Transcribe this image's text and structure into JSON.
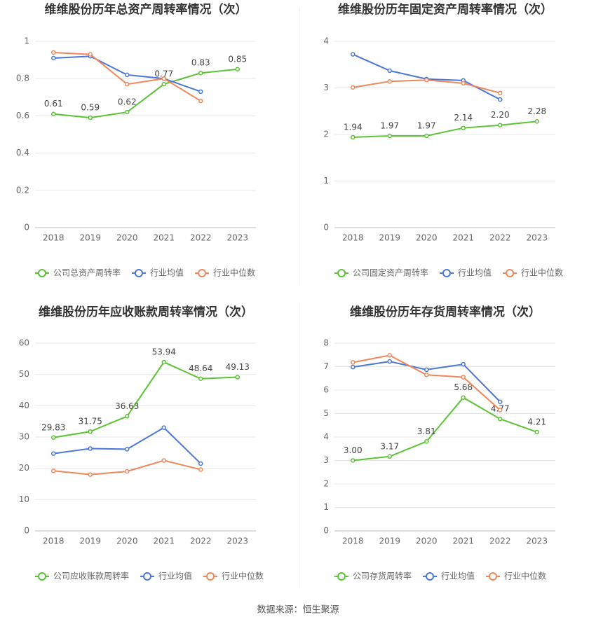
{
  "chart_data": [
    {
      "type": "line",
      "title": "维维股份历年总资产周转率情况（次）",
      "categories": [
        "2018",
        "2019",
        "2020",
        "2021",
        "2022",
        "2023"
      ],
      "ylim": [
        0,
        1
      ],
      "yticks": [
        0,
        0.2,
        0.4,
        0.6,
        0.8,
        1
      ],
      "grid": true,
      "series": [
        {
          "name": "公司总资产周转率",
          "color": "#5cc236",
          "values": [
            0.61,
            0.59,
            0.62,
            0.77,
            0.83,
            0.85
          ]
        },
        {
          "name": "行业均值",
          "color": "#4a77d9",
          "values": [
            0.91,
            0.92,
            0.82,
            0.8,
            0.73,
            null
          ]
        },
        {
          "name": "行业中位数",
          "color": "#f0875a",
          "values": [
            0.94,
            0.93,
            0.77,
            0.8,
            0.68,
            null
          ]
        }
      ]
    },
    {
      "type": "line",
      "title": "维维股份历年固定资产周转率情况（次）",
      "categories": [
        "2018",
        "2019",
        "2020",
        "2021",
        "2022",
        "2023"
      ],
      "ylim": [
        0,
        4
      ],
      "yticks": [
        0,
        1,
        2,
        3,
        4
      ],
      "grid": true,
      "series": [
        {
          "name": "公司固定资产周转率",
          "color": "#5cc236",
          "values": [
            1.94,
            1.97,
            1.97,
            2.14,
            2.2,
            2.28
          ],
          "value_labels": [
            "1.94",
            "1.97",
            "1.97",
            "2.14",
            "2.20",
            "2.28"
          ]
        },
        {
          "name": "行业均值",
          "color": "#4a77d9",
          "values": [
            3.72,
            3.37,
            3.19,
            3.16,
            2.75,
            null
          ]
        },
        {
          "name": "行业中位数",
          "color": "#f0875a",
          "values": [
            3.01,
            3.14,
            3.17,
            3.1,
            2.89,
            null
          ]
        }
      ]
    },
    {
      "type": "line",
      "title": "维维股份历年应收账款周转率情况（次）",
      "categories": [
        "2018",
        "2019",
        "2020",
        "2021",
        "2022",
        "2023"
      ],
      "ylim": [
        0,
        60
      ],
      "yticks": [
        0,
        10,
        20,
        30,
        40,
        50,
        60
      ],
      "grid": true,
      "series": [
        {
          "name": "公司应收账款周转率",
          "color": "#5cc236",
          "values": [
            29.83,
            31.75,
            36.63,
            53.94,
            48.64,
            49.13
          ]
        },
        {
          "name": "行业均值",
          "color": "#4a77d9",
          "values": [
            24.7,
            26.3,
            26.1,
            33.0,
            21.5,
            null
          ]
        },
        {
          "name": "行业中位数",
          "color": "#f0875a",
          "values": [
            19.2,
            18.0,
            19.0,
            22.5,
            19.6,
            null
          ]
        }
      ]
    },
    {
      "type": "line",
      "title": "维维股份历年存货周转率情况（次）",
      "categories": [
        "2018",
        "2019",
        "2020",
        "2021",
        "2022",
        "2023"
      ],
      "ylim": [
        0,
        8
      ],
      "yticks": [
        0,
        1,
        2,
        3,
        4,
        5,
        6,
        7,
        8
      ],
      "grid": true,
      "series": [
        {
          "name": "公司存货周转率",
          "color": "#5cc236",
          "values": [
            3.0,
            3.17,
            3.81,
            5.68,
            4.77,
            4.21
          ],
          "value_labels": [
            "3.00",
            "3.17",
            "3.81",
            "5.68",
            "4.77",
            "4.21"
          ]
        },
        {
          "name": "行业均值",
          "color": "#4a77d9",
          "values": [
            6.98,
            7.22,
            6.87,
            7.1,
            5.5,
            null
          ]
        },
        {
          "name": "行业中位数",
          "color": "#f0875a",
          "values": [
            7.18,
            7.48,
            6.65,
            6.55,
            5.15,
            null
          ]
        }
      ]
    }
  ],
  "source": "数据来源：恒生聚源"
}
